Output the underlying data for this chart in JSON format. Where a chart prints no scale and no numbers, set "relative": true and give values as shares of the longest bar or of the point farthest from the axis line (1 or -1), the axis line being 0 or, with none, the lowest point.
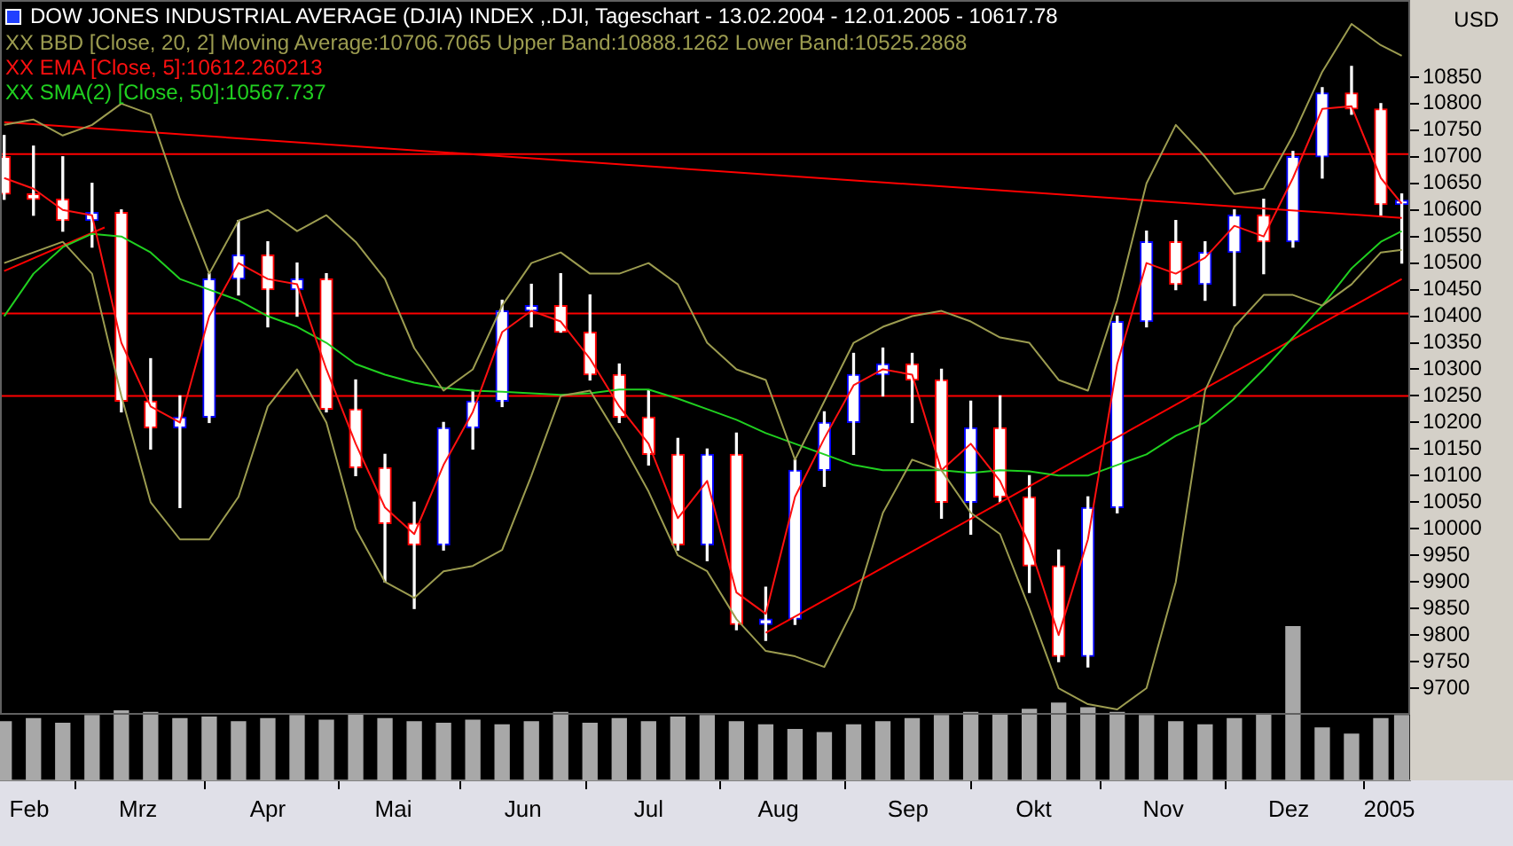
{
  "chart_data": [
    {
      "type": "candlestick",
      "title": "DOW JONES INDUSTRIAL AVERAGE (DJIA) INDEX ,.DJI, Tageschart - 13.02.2004 - 12.01.2005 - 10617.78",
      "ylabel": "USD",
      "legend": "top left",
      "tick_labels": "y",
      "x": [
        "2004-02-13",
        "2004-02-20",
        "2004-02-27",
        "2004-03-05",
        "2004-03-12",
        "2004-03-19",
        "2004-03-26",
        "2004-04-02",
        "2004-04-09",
        "2004-04-16",
        "2004-04-23",
        "2004-04-30",
        "2004-05-07",
        "2004-05-14",
        "2004-05-21",
        "2004-05-28",
        "2004-06-04",
        "2004-06-11",
        "2004-06-18",
        "2004-06-25",
        "2004-07-02",
        "2004-07-09",
        "2004-07-16",
        "2004-07-23",
        "2004-07-30",
        "2004-08-06",
        "2004-08-13",
        "2004-08-20",
        "2004-08-27",
        "2004-09-03",
        "2004-09-10",
        "2004-09-17",
        "2004-09-24",
        "2004-10-01",
        "2004-10-08",
        "2004-10-15",
        "2004-10-22",
        "2004-10-29",
        "2004-11-05",
        "2004-11-12",
        "2004-11-19",
        "2004-11-26",
        "2004-12-03",
        "2004-12-10",
        "2004-12-17",
        "2004-12-24",
        "2004-12-31",
        "2005-01-07",
        "2005-01-12"
      ],
      "ohlc": [
        [
          10700,
          10740,
          10620,
          10630
        ],
        [
          10630,
          10720,
          10590,
          10620
        ],
        [
          10620,
          10700,
          10560,
          10580
        ],
        [
          10580,
          10650,
          10530,
          10595
        ],
        [
          10595,
          10600,
          10220,
          10240
        ],
        [
          10240,
          10320,
          10150,
          10190
        ],
        [
          10190,
          10250,
          10040,
          10210
        ],
        [
          10210,
          10480,
          10200,
          10470
        ],
        [
          10470,
          10580,
          10440,
          10515
        ],
        [
          10515,
          10540,
          10380,
          10450
        ],
        [
          10450,
          10500,
          10400,
          10470
        ],
        [
          10470,
          10480,
          10220,
          10225
        ],
        [
          10225,
          10280,
          10100,
          10115
        ],
        [
          10115,
          10140,
          9900,
          10010
        ],
        [
          10010,
          10050,
          9850,
          9970
        ],
        [
          9970,
          10200,
          9960,
          10190
        ],
        [
          10190,
          10260,
          10150,
          10240
        ],
        [
          10240,
          10430,
          10230,
          10410
        ],
        [
          10410,
          10460,
          10380,
          10420
        ],
        [
          10420,
          10480,
          10370,
          10370
        ],
        [
          10370,
          10440,
          10280,
          10290
        ],
        [
          10290,
          10310,
          10200,
          10210
        ],
        [
          10210,
          10260,
          10120,
          10140
        ],
        [
          10140,
          10170,
          9960,
          9970
        ],
        [
          9970,
          10150,
          9940,
          10140
        ],
        [
          10140,
          10180,
          9810,
          9820
        ],
        [
          9820,
          9890,
          9790,
          9830
        ],
        [
          9830,
          10130,
          9820,
          10110
        ],
        [
          10110,
          10220,
          10080,
          10200
        ],
        [
          10200,
          10330,
          10140,
          10290
        ],
        [
          10290,
          10340,
          10250,
          10310
        ],
        [
          10310,
          10330,
          10200,
          10280
        ],
        [
          10280,
          10300,
          10020,
          10050
        ],
        [
          10050,
          10240,
          9990,
          10190
        ],
        [
          10190,
          10250,
          10050,
          10060
        ],
        [
          10060,
          10100,
          9880,
          9930
        ],
        [
          9930,
          9960,
          9750,
          9760
        ],
        [
          9760,
          10060,
          9740,
          10040
        ],
        [
          10040,
          10400,
          10030,
          10390
        ],
        [
          10390,
          10560,
          10380,
          10540
        ],
        [
          10540,
          10580,
          10450,
          10460
        ],
        [
          10460,
          10540,
          10430,
          10520
        ],
        [
          10520,
          10600,
          10420,
          10590
        ],
        [
          10590,
          10620,
          10480,
          10540
        ],
        [
          10540,
          10710,
          10530,
          10700
        ],
        [
          10700,
          10830,
          10660,
          10820
        ],
        [
          10820,
          10870,
          10780,
          10790
        ],
        [
          10790,
          10800,
          10590,
          10610
        ],
        [
          10610,
          10630,
          10500,
          10618
        ]
      ],
      "colors": [
        "#ff0000",
        "#ff0000",
        "#ff0000",
        "#0000ff",
        "#ff0000",
        "#ff0000",
        "#0000ff",
        "#0000ff",
        "#0000ff",
        "#ff0000",
        "#0000ff",
        "#ff0000",
        "#ff0000",
        "#ff0000",
        "#ff0000",
        "#0000ff",
        "#0000ff",
        "#0000ff",
        "#0000ff",
        "#ff0000",
        "#ff0000",
        "#ff0000",
        "#ff0000",
        "#ff0000",
        "#0000ff",
        "#ff0000",
        "#0000ff",
        "#0000ff",
        "#0000ff",
        "#0000ff",
        "#0000ff",
        "#ff0000",
        "#ff0000",
        "#0000ff",
        "#ff0000",
        "#ff0000",
        "#ff0000",
        "#0000ff",
        "#0000ff",
        "#0000ff",
        "#ff0000",
        "#0000ff",
        "#0000ff",
        "#ff0000",
        "#0000ff",
        "#0000ff",
        "#ff0000",
        "#ff0000",
        "#0000ff"
      ],
      "series": [
        {
          "type": "line",
          "name": "XX BBD [Close, 20, 2] Moving Average:10706.7065 Upper Band:10888.1262 Lower Band:10525.2868",
          "color": "#9c9c50",
          "values": [
            10760,
            10770,
            10740,
            10760,
            10800,
            10780,
            10620,
            10480,
            10580,
            10600,
            10560,
            10590,
            10540,
            10470,
            10340,
            10260,
            10300,
            10420,
            10500,
            10520,
            10480,
            10480,
            10500,
            10460,
            10350,
            10300,
            10280,
            10130,
            10240,
            10350,
            10380,
            10400,
            10410,
            10390,
            10360,
            10350,
            10280,
            10260,
            10430,
            10650,
            10760,
            10700,
            10630,
            10640,
            10740,
            10860,
            10950,
            10910,
            10890
          ]
        },
        {
          "type": "line",
          "color": "#9c9c50",
          "values": [
            10500,
            10520,
            10540,
            10480,
            10250,
            10050,
            9980,
            9980,
            10060,
            10230,
            10300,
            10200,
            10000,
            9900,
            9870,
            9920,
            9930,
            9960,
            10100,
            10250,
            10260,
            10170,
            10070,
            9950,
            9920,
            9830,
            9770,
            9760,
            9740,
            9850,
            10030,
            10130,
            10110,
            10030,
            9990,
            9850,
            9700,
            9670,
            9660,
            9700,
            9900,
            10260,
            10380,
            10440,
            10440,
            10420,
            10460,
            10520,
            10525
          ]
        },
        {
          "type": "line",
          "name": "XX EMA [Close, 5]:10612.260213",
          "color": "#ff1010",
          "values": [
            10660,
            10640,
            10600,
            10590,
            10350,
            10230,
            10200,
            10400,
            10500,
            10470,
            10460,
            10300,
            10160,
            10040,
            9990,
            10120,
            10220,
            10370,
            10410,
            10390,
            10320,
            10230,
            10160,
            10020,
            10090,
            9880,
            9840,
            10060,
            10170,
            10270,
            10300,
            10290,
            10110,
            10160,
            10090,
            9970,
            9800,
            9980,
            10310,
            10500,
            10480,
            10510,
            10570,
            10550,
            10660,
            10790,
            10795,
            10660,
            10612
          ]
        },
        {
          "type": "line",
          "name": "XX SMA(2) [Close, 50]:10567.737",
          "color": "#20d020",
          "values": [
            10400,
            10480,
            10530,
            10555,
            10550,
            10520,
            10470,
            10450,
            10430,
            10400,
            10380,
            10350,
            10310,
            10290,
            10275,
            10265,
            10260,
            10258,
            10255,
            10252,
            10255,
            10262,
            10262,
            10245,
            10225,
            10205,
            10180,
            10160,
            10140,
            10120,
            10110,
            10110,
            10110,
            10105,
            10110,
            10108,
            10100,
            10100,
            10120,
            10140,
            10175,
            10200,
            10245,
            10300,
            10360,
            10420,
            10490,
            10540,
            10560
          ]
        },
        {
          "type": "line",
          "color": "#ff0000",
          "x": [
            "2004-02-13",
            "2005-01-12"
          ],
          "values": [
            10765,
            10585
          ]
        },
        {
          "type": "line",
          "color": "#ff0000",
          "x": [
            "2004-08-13",
            "2005-01-12"
          ],
          "values": [
            9804,
            10470
          ]
        },
        {
          "type": "line",
          "color": "#ff0000",
          "x": [
            "2004-02-13",
            "2004-03-08"
          ],
          "values": [
            10485,
            10567
          ]
        }
      ],
      "ref_lines": [
        {
          "axis": "y",
          "value": 10705,
          "color": "#ff0000"
        },
        {
          "axis": "y",
          "value": 10405,
          "color": "#ff0000"
        },
        {
          "axis": "y",
          "value": 10250,
          "color": "#ff0000"
        }
      ],
      "xlim": [
        "2004-02-12",
        "2005-01-14"
      ],
      "ylim": [
        9650,
        10995
      ],
      "yticks": [
        9700,
        9750,
        9800,
        9850,
        9900,
        9950,
        10000,
        10050,
        10100,
        10150,
        10200,
        10250,
        10300,
        10350,
        10400,
        10450,
        10500,
        10550,
        10600,
        10650,
        10700,
        10750,
        10800,
        10850
      ]
    },
    {
      "type": "bar",
      "relative": true,
      "tick_labels": "x",
      "color": "#a8a8a8",
      "x": [
        "2004-02-13",
        "2004-02-20",
        "2004-02-27",
        "2004-03-05",
        "2004-03-12",
        "2004-03-19",
        "2004-03-26",
        "2004-04-02",
        "2004-04-09",
        "2004-04-16",
        "2004-04-23",
        "2004-04-30",
        "2004-05-07",
        "2004-05-14",
        "2004-05-21",
        "2004-05-28",
        "2004-06-04",
        "2004-06-11",
        "2004-06-18",
        "2004-06-25",
        "2004-07-02",
        "2004-07-09",
        "2004-07-16",
        "2004-07-23",
        "2004-07-30",
        "2004-08-06",
        "2004-08-13",
        "2004-08-20",
        "2004-08-27",
        "2004-09-03",
        "2004-09-10",
        "2004-09-17",
        "2004-09-24",
        "2004-10-01",
        "2004-10-08",
        "2004-10-15",
        "2004-10-22",
        "2004-10-29",
        "2004-11-05",
        "2004-11-12",
        "2004-11-19",
        "2004-11-26",
        "2004-12-03",
        "2004-12-10",
        "2004-12-17",
        "2004-12-24",
        "2004-12-31",
        "2005-01-07",
        "2005-01-12"
      ],
      "values": [
        0.38,
        0.4,
        0.37,
        0.42,
        0.45,
        0.44,
        0.4,
        0.41,
        0.38,
        0.4,
        0.42,
        0.39,
        0.43,
        0.4,
        0.38,
        0.37,
        0.39,
        0.36,
        0.38,
        0.44,
        0.37,
        0.4,
        0.38,
        0.41,
        0.42,
        0.38,
        0.36,
        0.33,
        0.31,
        0.36,
        0.38,
        0.4,
        0.42,
        0.44,
        0.43,
        0.46,
        0.5,
        0.47,
        0.44,
        0.42,
        0.38,
        0.36,
        0.4,
        0.43,
        1,
        0.34,
        0.3,
        0.4,
        0.42
      ],
      "xlim": [
        "2004-02-12",
        "2005-01-14"
      ],
      "xticks": [
        {
          "value": "2004-02-19",
          "label": "Feb"
        },
        {
          "value": "2004-03-01",
          "label": null
        },
        {
          "value": "2004-03-16",
          "label": "Mrz"
        },
        {
          "value": "2004-04-01",
          "label": null
        },
        {
          "value": "2004-04-16",
          "label": "Apr"
        },
        {
          "value": "2004-05-03",
          "label": null
        },
        {
          "value": "2004-05-16",
          "label": "Mai"
        },
        {
          "value": "2004-06-01",
          "label": null
        },
        {
          "value": "2004-06-16",
          "label": "Jun"
        },
        {
          "value": "2004-07-01",
          "label": null
        },
        {
          "value": "2004-07-16",
          "label": "Jul"
        },
        {
          "value": "2004-08-02",
          "label": null
        },
        {
          "value": "2004-08-16",
          "label": "Aug"
        },
        {
          "value": "2004-09-01",
          "label": null
        },
        {
          "value": "2004-09-16",
          "label": "Sep"
        },
        {
          "value": "2004-10-01",
          "label": null
        },
        {
          "value": "2004-10-16",
          "label": "Okt"
        },
        {
          "value": "2004-11-01",
          "label": null
        },
        {
          "value": "2004-11-16",
          "label": "Nov"
        },
        {
          "value": "2004-12-01",
          "label": null
        },
        {
          "value": "2004-12-16",
          "label": "Dez"
        },
        {
          "value": "2005-01-03",
          "label": null
        },
        {
          "value": "2005-01-09",
          "label": "2005"
        }
      ]
    }
  ]
}
